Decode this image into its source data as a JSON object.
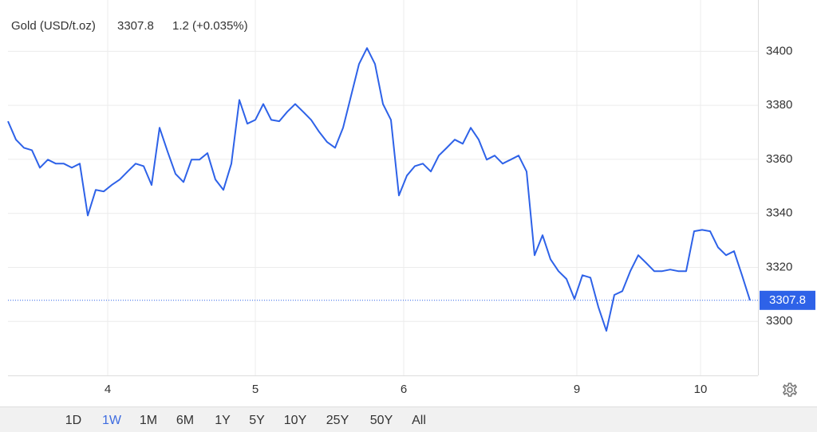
{
  "chart_data": {
    "type": "line",
    "title": "Gold (USD/t.oz)",
    "last_price": 3307.8,
    "change": "1.2 (+0.035%)",
    "color": "#2e62e8",
    "price_color": "#3e6ce0",
    "change_color": "#3fb83f",
    "xlim": [
      0,
      94
    ],
    "xticks": [
      {
        "value": 12.5,
        "label": "4"
      },
      {
        "value": 31,
        "label": "5"
      },
      {
        "value": 49.6,
        "label": "6"
      },
      {
        "value": 71.3,
        "label": "9"
      },
      {
        "value": 86.8,
        "label": "10"
      }
    ],
    "ylim": [
      3280,
      3419
    ],
    "yticks": [
      3300,
      3320,
      3340,
      3360,
      3380,
      3400
    ],
    "grid": true,
    "values": [
      3374.1,
      3367.3,
      3364.3,
      3363.4,
      3356.9,
      3359.9,
      3358.4,
      3358.4,
      3356.9,
      3358.4,
      3339.2,
      3348.7,
      3348.1,
      3350.5,
      3352.5,
      3355.5,
      3358.4,
      3357.5,
      3350.5,
      3371.7,
      3362.9,
      3354.6,
      3351.6,
      3359.9,
      3359.9,
      3362.3,
      3352.5,
      3348.7,
      3358.4,
      3382.0,
      3373.2,
      3374.6,
      3380.5,
      3374.6,
      3374.1,
      3377.6,
      3380.5,
      3377.6,
      3374.6,
      3370.2,
      3366.4,
      3364.3,
      3371.7,
      3383.5,
      3395.3,
      3401.2,
      3395.3,
      3380.5,
      3374.6,
      3346.6,
      3354.0,
      3357.5,
      3358.4,
      3355.5,
      3361.4,
      3364.3,
      3367.3,
      3365.8,
      3371.7,
      3367.3,
      3359.9,
      3361.4,
      3358.4,
      3359.9,
      3361.4,
      3355.5,
      3324.5,
      3331.9,
      3323.0,
      3318.6,
      3315.7,
      3308.3,
      3317.1,
      3316.2,
      3305.3,
      3296.5,
      3309.8,
      3311.2,
      3318.6,
      3324.5,
      3321.6,
      3318.6,
      3318.6,
      3319.2,
      3318.6,
      3318.6,
      3333.4,
      3333.9,
      3333.4,
      3327.4,
      3324.5,
      3326.0,
      3317.1,
      3307.8
    ],
    "ranges": [
      "1D",
      "1W",
      "1M",
      "6M",
      "1Y",
      "5Y",
      "10Y",
      "25Y",
      "50Y",
      "All"
    ],
    "active_range": 1
  }
}
